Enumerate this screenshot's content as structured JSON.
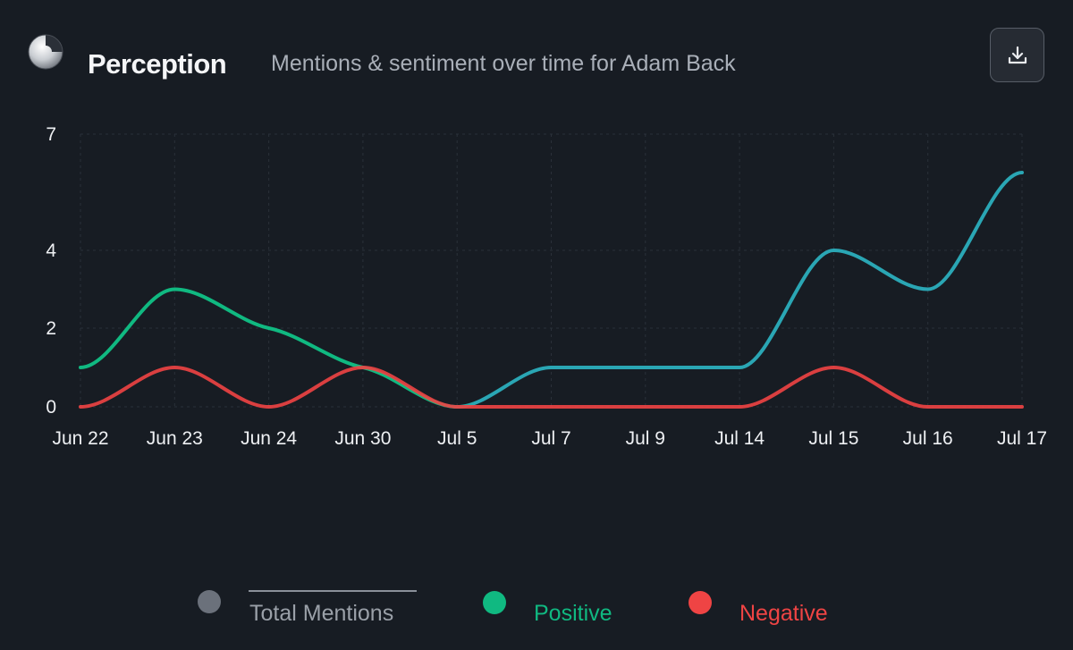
{
  "header": {
    "title": "Perception",
    "subtitle": "Mentions & sentiment over time for Adam Back",
    "logo_icon": "moon-logo-icon",
    "download_icon": "download-icon"
  },
  "colors": {
    "background": "#171c23",
    "total": "#2aa6b4",
    "positive": "#10b981",
    "negative": "#ef4444",
    "legend_total_dot": "#6b717b"
  },
  "legend": {
    "total_label": "Total Mentions",
    "total_hidden": true,
    "positive_label": "Positive",
    "negative_label": "Negative"
  },
  "chart_data": {
    "type": "line",
    "title": "",
    "xlabel": "",
    "ylabel": "",
    "categories": [
      "Jun 22",
      "Jun 23",
      "Jun 24",
      "Jun 30",
      "Jul 5",
      "Jul 7",
      "Jul 9",
      "Jul 14",
      "Jul 15",
      "Jul 16",
      "Jul 17"
    ],
    "y_ticks": [
      0,
      2,
      4,
      7
    ],
    "y_tick_labels": [
      "0",
      "2",
      "4",
      "7"
    ],
    "grid": true,
    "series": [
      {
        "name": "Total Mentions",
        "values": [
          1,
          3,
          2,
          1,
          0,
          1,
          1,
          1,
          4,
          3,
          6
        ],
        "visible": false
      },
      {
        "name": "Positive",
        "values": [
          1,
          3,
          2,
          1,
          0,
          1,
          1,
          1,
          4,
          3,
          6
        ]
      },
      {
        "name": "Negative",
        "values": [
          0,
          1,
          0,
          1,
          0,
          0,
          0,
          0,
          1,
          0,
          0
        ]
      }
    ]
  }
}
